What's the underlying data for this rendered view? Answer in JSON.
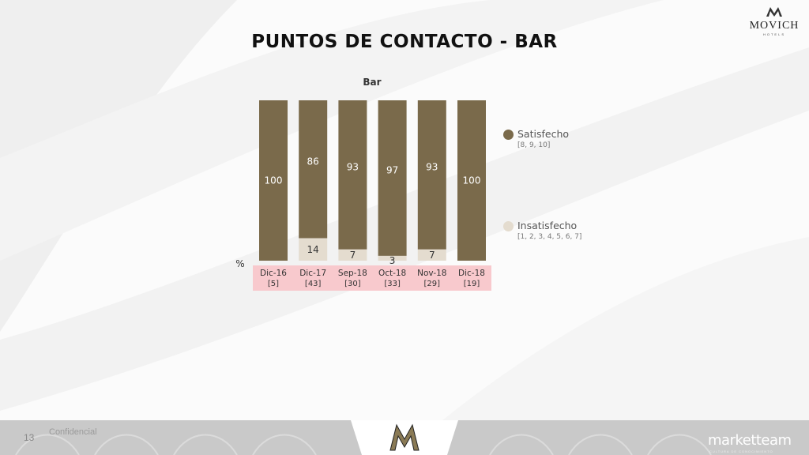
{
  "slide": {
    "title": "PUNTOS DE CONTACTO - BAR",
    "logo_text": "MOVICH",
    "logo_subtext": "HOTELS",
    "page_number": "13",
    "confidential_label": "Confidencial",
    "footer_brand": "marketteam",
    "footer_brand_subtext": "CULTURA DE CONOCIMIENTO"
  },
  "chart_data": {
    "type": "bar",
    "stacked": true,
    "title": "Bar",
    "ylabel": "%",
    "ylim": [
      0,
      100
    ],
    "categories": [
      "Dic-16",
      "Dic-17",
      "Sep-18",
      "Oct-18",
      "Nov-18",
      "Dic-18"
    ],
    "sample_sizes": [
      "[5]",
      "[43]",
      "[30]",
      "[33]",
      "[29]",
      "[19]"
    ],
    "series": [
      {
        "name": "Satisfecho",
        "range_label": "[8, 9, 10]",
        "color": "#7a6a4b",
        "values": [
          100,
          86,
          93,
          97,
          93,
          100
        ],
        "labels": [
          "100",
          "86",
          "93",
          "97",
          "93",
          "100"
        ]
      },
      {
        "name": "Insatisfecho",
        "range_label": "[1, 2, 3, 4, 5, 6, 7]",
        "color": "#e4dccf",
        "values": [
          0,
          14,
          7,
          3,
          7,
          0
        ],
        "labels": [
          "",
          "14",
          "7",
          "3",
          "7",
          ""
        ]
      }
    ],
    "legend_position": "right",
    "category_band_color": "#f8c9cd",
    "grid": false
  }
}
